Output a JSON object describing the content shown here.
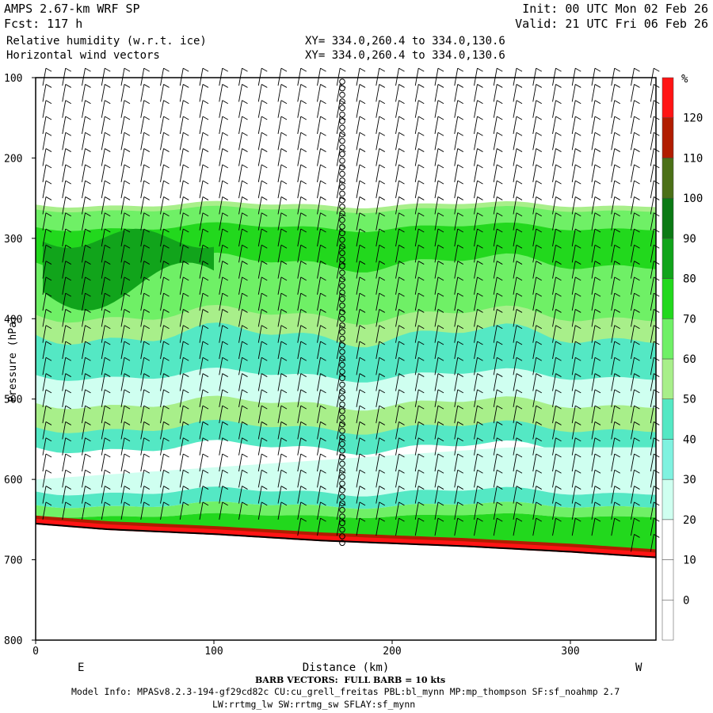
{
  "header": {
    "title": "AMPS 2.67-km WRF SP",
    "fcst": "Fcst: 117 h",
    "field1": "Relative humidity (w.r.t. ice)",
    "field2": "Horizontal wind vectors",
    "init": "Init: 00 UTC Mon 02 Feb 26",
    "valid": "Valid: 21 UTC Fri 06 Feb 26",
    "xy1": "XY= 334.0,260.4 to 334.0,130.6",
    "xy2": "XY= 334.0,260.4 to 334.0,130.6"
  },
  "footer": {
    "barb_note": "BARB VECTORS:  FULL BARB = 10 kts",
    "model_info": "Model Info: MPASv8.2.3-194-gf29cd82c CU:cu_grell_freitas PBL:bl_mynn MP:mp_thompson SF:sf_noahmp 2.7",
    "model_info2": "LW:rrtmg_lw SW:rrtmg_sw SFLAY:sf_mynn"
  },
  "chart_data": {
    "type": "heatmap",
    "xlabel": "Distance (km)",
    "ylabel": "Pressure (hPa)",
    "xlim": [
      0,
      348
    ],
    "ylim": [
      800,
      100
    ],
    "x_ticks": [
      0,
      100,
      200,
      300
    ],
    "y_ticks": [
      100,
      200,
      300,
      400,
      500,
      600,
      700,
      800
    ],
    "left_end_label": "E",
    "right_end_label": "W",
    "colorbar": {
      "unit": "%",
      "levels": [
        0,
        10,
        20,
        30,
        40,
        50,
        60,
        70,
        80,
        90,
        100,
        110,
        120
      ],
      "colors": [
        "#ffffff",
        "#ffffff",
        "#ffffff",
        "#cffff0",
        "#7ff2e0",
        "#54e8c4",
        "#a8ef8a",
        "#6ff066",
        "#22d81d",
        "#11a41b",
        "#0b7a14",
        "#4b7017",
        "#b11d00",
        "#ff1414"
      ]
    },
    "terrain_hpa": [
      [
        0,
        655
      ],
      [
        40,
        662
      ],
      [
        100,
        668
      ],
      [
        160,
        676
      ],
      [
        240,
        683
      ],
      [
        300,
        690
      ],
      [
        348,
        697
      ]
    ],
    "rh_layers": [
      {
        "name": "cirrus_top",
        "bottom": 300,
        "top": 262
      },
      {
        "name": "moist_deck",
        "bottom": 470,
        "top": 300
      },
      {
        "name": "dry_mid",
        "bottom": 620,
        "top": 540
      }
    ],
    "sounding_x_km": 172
  }
}
